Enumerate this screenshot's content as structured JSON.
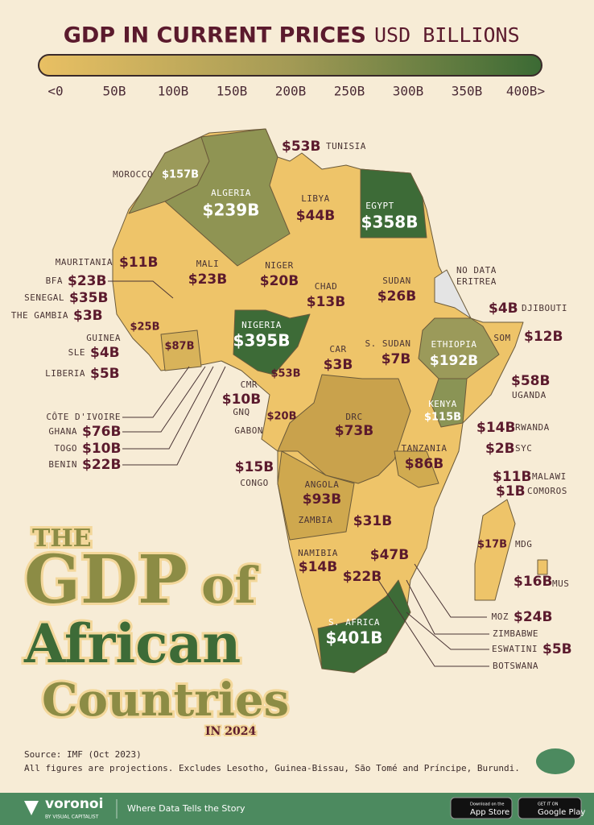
{
  "header": {
    "title": "GDP IN CURRENT PRICES",
    "unit": "USD BILLIONS"
  },
  "legend": {
    "ticks": [
      "<0",
      "50B",
      "100B",
      "150B",
      "200B",
      "250B",
      "300B",
      "350B",
      "400B>"
    ]
  },
  "countries": [
    {
      "name": "TUNISIA",
      "value": "$53B"
    },
    {
      "name": "MOROCCO",
      "value": "$157B"
    },
    {
      "name": "ALGERIA",
      "value": "$239B"
    },
    {
      "name": "LIBYA",
      "value": "$44B"
    },
    {
      "name": "EGYPT",
      "value": "$358B"
    },
    {
      "name": "ERITREA",
      "value": "NO DATA"
    },
    {
      "name": "MAURITANIA",
      "value": "$11B"
    },
    {
      "name": "MALI",
      "value": "$23B"
    },
    {
      "name": "NIGER",
      "value": "$20B"
    },
    {
      "name": "SUDAN",
      "value": "$26B"
    },
    {
      "name": "CHAD",
      "value": "$13B"
    },
    {
      "name": "BFA",
      "value": "$23B"
    },
    {
      "name": "SENEGAL",
      "value": "$35B"
    },
    {
      "name": "THE GAMBIA",
      "value": "$3B"
    },
    {
      "name": "DJIBOUTI",
      "value": "$4B"
    },
    {
      "name": "NIGERIA",
      "value": "$395B"
    },
    {
      "name": "GUINEA",
      "value": "$25B"
    },
    {
      "name": "SOM",
      "value": "$12B"
    },
    {
      "name": "CÔTE D'IVOIRE",
      "value": "$87B"
    },
    {
      "name": "SLE",
      "value": "$4B"
    },
    {
      "name": "S. SUDAN",
      "value": "$7B"
    },
    {
      "name": "CAR",
      "value": "$3B"
    },
    {
      "name": "ETHIOPIA",
      "value": "$192B"
    },
    {
      "name": "LIBERIA",
      "value": "$5B"
    },
    {
      "name": "CMR",
      "value": "$53B"
    },
    {
      "name": "UGANDA",
      "value": "$58B"
    },
    {
      "name": "GNQ",
      "value": "$10B"
    },
    {
      "name": "KENYA",
      "value": "$115B"
    },
    {
      "name": "GABON",
      "value": "$20B"
    },
    {
      "name": "DRC",
      "value": "$73B"
    },
    {
      "name": "RWANDA",
      "value": "$14B"
    },
    {
      "name": "GHANA",
      "value": "$76B"
    },
    {
      "name": "TANZANIA",
      "value": "$86B"
    },
    {
      "name": "SYC",
      "value": "$2B"
    },
    {
      "name": "TOGO",
      "value": "$10B"
    },
    {
      "name": "BENIN",
      "value": "$22B"
    },
    {
      "name": "CONGO",
      "value": "$15B"
    },
    {
      "name": "MALAWI",
      "value": "$11B"
    },
    {
      "name": "COMOROS",
      "value": "$1B"
    },
    {
      "name": "ANGOLA",
      "value": "$93B"
    },
    {
      "name": "ZAMBIA",
      "value": "$31B"
    },
    {
      "name": "MDG",
      "value": "$17B"
    },
    {
      "name": "NAMIBIA",
      "value": "$14B"
    },
    {
      "name": "ZIMBABWE",
      "value": "$47B"
    },
    {
      "name": "MOZ",
      "value": "$24B"
    },
    {
      "name": "BOTSWANA",
      "value": "$22B"
    },
    {
      "name": "S. AFRICA",
      "value": "$401B"
    },
    {
      "name": "MUS",
      "value": "$16B"
    },
    {
      "name": "ESWATINI",
      "value": "$5B"
    }
  ],
  "title": {
    "the": "THE",
    "gdp": "GDP",
    "of": "of",
    "african": "African",
    "countries": "Countries",
    "year": "IN 2024"
  },
  "source": {
    "line1": "Source: IMF (Oct 2023)",
    "line2": "All figures are projections. Excludes Lesotho, Guinea-Bissau, São Tomé and Príncipe, Burundi."
  },
  "footer": {
    "brand": "voronoi",
    "brand_sub": "BY VISUAL CAPITALIST",
    "tagline": "Where Data Tells the Story",
    "appstore_small": "Download on the",
    "appstore": "App Store",
    "googleplay_small": "GET IT ON",
    "googleplay": "Google Play"
  }
}
